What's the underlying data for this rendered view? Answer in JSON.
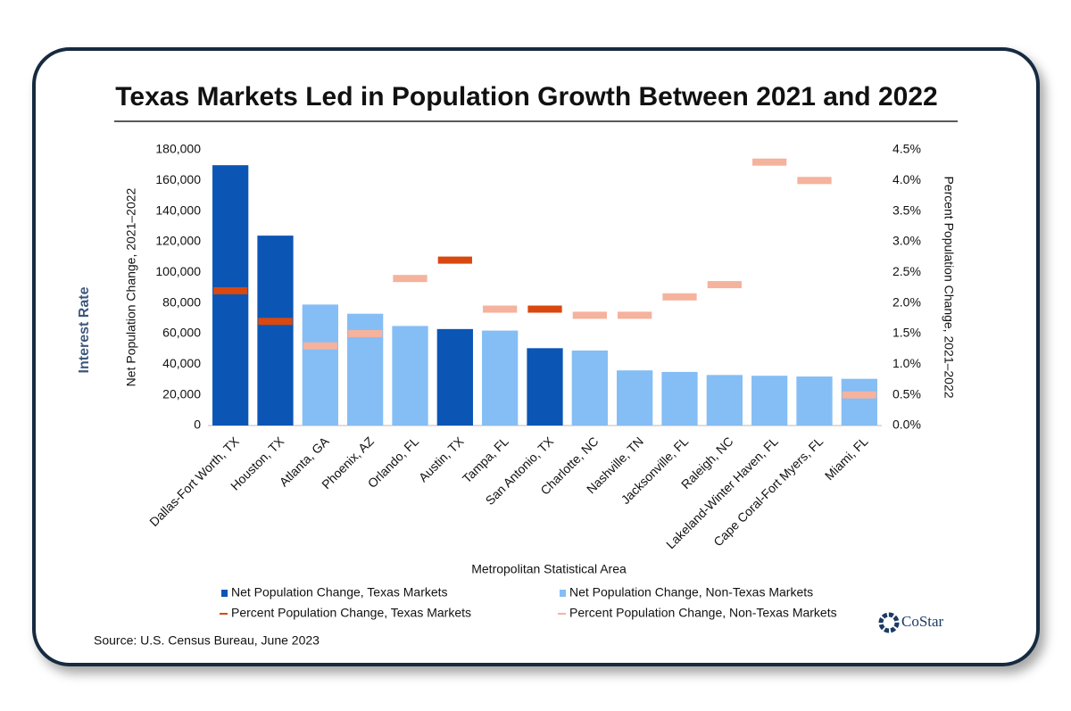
{
  "chart_data": {
    "type": "bar",
    "title": "Texas Markets Led in Population Growth Between 2021 and 2022",
    "x_label": "Metropolitan Statistical Area",
    "y_label": "Net Population Change, 2021–2022",
    "y2_label": "Percent Population Change, 2021–2022",
    "categories": [
      "Dallas-Fort Worth, TX",
      "Houston, TX",
      "Atlanta, GA",
      "Phoenix, AZ",
      "Orlando, FL",
      "Austin, TX",
      "Tampa, FL",
      "San Antonio, TX",
      "Charlotte, NC",
      "Nashville, TN",
      "Jacksonville, FL",
      "Raleigh, NC",
      "Lakeland-Winter Haven, FL",
      "Cape Coral-Fort Myers, FL",
      "Miami, FL"
    ],
    "series": [
      {
        "name": "Net Population Change, Texas Markets",
        "color": "#0b56b5",
        "values": [
          170000,
          124000,
          null,
          null,
          null,
          63000,
          null,
          50500,
          null,
          null,
          null,
          null,
          null,
          null,
          null
        ]
      },
      {
        "name": "Net Population Change, Non-Texas Markets",
        "color": "#85bdf5",
        "values": [
          null,
          null,
          79000,
          73000,
          65000,
          null,
          62000,
          null,
          49000,
          36000,
          35000,
          33000,
          32500,
          32000,
          30500
        ]
      },
      {
        "name": "Percent Population Change, Texas Markets",
        "color": "#d9480f",
        "axis": "y2",
        "values": [
          2.2,
          1.7,
          null,
          null,
          null,
          2.7,
          null,
          1.9,
          null,
          null,
          null,
          null,
          null,
          null,
          null
        ]
      },
      {
        "name": "Percent Population Change, Non-Texas Markets",
        "color": "#f5b29c",
        "axis": "y2",
        "values": [
          null,
          null,
          1.3,
          1.5,
          2.4,
          null,
          1.9,
          null,
          1.8,
          1.8,
          2.1,
          2.3,
          4.3,
          4.0,
          0.5
        ]
      }
    ],
    "ylim": [
      0,
      180000
    ],
    "yticks": [
      0,
      {
        "value": 20000,
        "label": "20,000"
      },
      {
        "value": 40000,
        "label": "40,000"
      },
      {
        "value": 60000,
        "label": "60,000"
      },
      {
        "value": 80000,
        "label": "80,000"
      },
      {
        "value": 100000,
        "label": "100,000"
      },
      {
        "value": 120000,
        "label": "120,000"
      },
      {
        "value": 140000,
        "label": "140,000"
      },
      {
        "value": 160000,
        "label": "160,000"
      },
      {
        "value": 180000,
        "label": "180,000"
      }
    ],
    "y2lim": [
      0,
      4.5
    ],
    "y2ticks": [
      {
        "value": 0,
        "label": "0.0%"
      },
      {
        "value": 0.5,
        "label": "0.5%"
      },
      {
        "value": 1,
        "label": "1.0%"
      },
      {
        "value": 1.5,
        "label": "1.5%"
      },
      {
        "value": 2,
        "label": "2.0%"
      },
      {
        "value": 2.5,
        "label": "2.5%"
      },
      {
        "value": 3,
        "label": "3.0%"
      },
      {
        "value": 3.5,
        "label": "3.5%"
      },
      {
        "value": 4,
        "label": "4.0%"
      },
      {
        "value": 4.5,
        "label": "4.5%"
      }
    ],
    "grid": false
  },
  "source": "Source: U.S. Census Bureau, June 2023",
  "logo": "CoStar",
  "background_text": "Interest Rate"
}
